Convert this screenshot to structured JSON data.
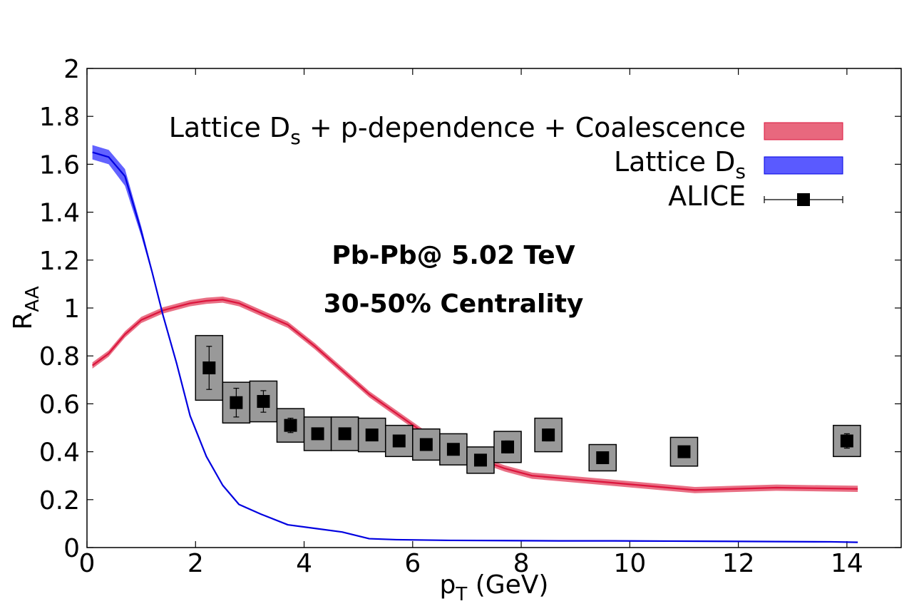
{
  "chart_data": {
    "type": "line",
    "title": "",
    "xlabel": {
      "main": "p",
      "sub": "T",
      "rest": " (GeV)"
    },
    "ylabel": {
      "main": "R",
      "sub": "AA"
    },
    "xlim": [
      0,
      15
    ],
    "ylim": [
      0,
      2
    ],
    "x_ticks": [
      0,
      2,
      4,
      6,
      8,
      10,
      12,
      14
    ],
    "y_ticks": [
      0,
      0.2,
      0.4,
      0.6,
      0.8,
      1,
      1.2,
      1.4,
      1.6,
      1.8,
      2
    ],
    "x_tick_labels": [
      "0",
      "2",
      "4",
      "6",
      "8",
      "10",
      "12",
      "14"
    ],
    "y_tick_labels": [
      "0",
      "0.2",
      "0.4",
      "0.6",
      "0.8",
      "1",
      "1.2",
      "1.4",
      "1.6",
      "1.8",
      "2"
    ],
    "grid": false,
    "legend_position": "top-right",
    "annotations": [
      "Pb-Pb@ 5.02 TeV",
      "30-50% Centrality"
    ],
    "series": [
      {
        "name": "Lattice D_s + p-dependence + Coalescence",
        "legend": {
          "pre": "Lattice D",
          "sub": "s",
          "post": " + p-dependence + Coalescence"
        },
        "type": "band",
        "line_color": "#dc143c",
        "band_color": "#e8687e",
        "x": [
          0.1,
          0.4,
          0.7,
          1.0,
          1.4,
          1.9,
          2.2,
          2.5,
          2.8,
          3.2,
          3.7,
          4.2,
          4.7,
          5.2,
          5.7,
          6.2,
          6.7,
          7.2,
          7.7,
          8.2,
          9.2,
          9.7,
          10.2,
          11.2,
          12.7,
          14.2
        ],
        "y": [
          0.76,
          0.81,
          0.89,
          0.95,
          0.99,
          1.02,
          1.03,
          1.035,
          1.02,
          0.98,
          0.93,
          0.84,
          0.74,
          0.64,
          0.56,
          0.48,
          0.41,
          0.37,
          0.33,
          0.3,
          0.28,
          0.27,
          0.26,
          0.24,
          0.25,
          0.245
        ],
        "band": 0.013
      },
      {
        "name": "Lattice D_s",
        "legend": {
          "pre": "Lattice D",
          "sub": "s",
          "post": ""
        },
        "type": "band",
        "line_color": "#0000e0",
        "band_color": "#5a5aff",
        "x": [
          0.1,
          0.4,
          0.7,
          1.0,
          1.2,
          1.4,
          1.65,
          1.9,
          2.2,
          2.5,
          2.8,
          3.2,
          3.7,
          4.2,
          4.7,
          5.2,
          5.7,
          6.7,
          7.7,
          8.7,
          9.7,
          10.7,
          11.7,
          12.7,
          13.7,
          14.2
        ],
        "y": [
          1.65,
          1.63,
          1.55,
          1.32,
          1.15,
          0.97,
          0.77,
          0.55,
          0.38,
          0.26,
          0.18,
          0.14,
          0.095,
          0.08,
          0.065,
          0.037,
          0.033,
          0.03,
          0.029,
          0.028,
          0.028,
          0.027,
          0.026,
          0.025,
          0.024,
          0.022
        ],
        "band_upper": [
          1.68,
          1.66,
          1.58,
          1.34,
          1.16,
          0.975,
          0.775,
          0.552,
          0.382,
          0.262,
          0.182,
          0.142,
          0.097,
          0.082,
          0.067,
          0.039,
          0.035,
          0.032,
          0.031,
          0.03,
          0.03,
          0.029,
          0.028,
          0.027,
          0.026,
          0.024
        ],
        "band_lower": [
          1.62,
          1.6,
          1.51,
          1.3,
          1.14,
          0.965,
          0.765,
          0.548,
          0.378,
          0.258,
          0.178,
          0.138,
          0.093,
          0.078,
          0.063,
          0.035,
          0.031,
          0.028,
          0.027,
          0.026,
          0.026,
          0.025,
          0.024,
          0.023,
          0.022,
          0.02
        ]
      },
      {
        "name": "ALICE",
        "legend": {
          "pre": "ALICE",
          "sub": "",
          "post": ""
        },
        "type": "points",
        "color": "#000000",
        "box_color": "#999999",
        "x": [
          2.25,
          2.75,
          3.25,
          3.75,
          4.25,
          4.75,
          5.25,
          5.75,
          6.25,
          6.75,
          7.25,
          7.75,
          8.5,
          9.5,
          11.0,
          14.0
        ],
        "y": [
          0.75,
          0.605,
          0.61,
          0.51,
          0.475,
          0.475,
          0.47,
          0.445,
          0.43,
          0.41,
          0.365,
          0.42,
          0.47,
          0.375,
          0.4,
          0.445
        ],
        "stat": [
          0.09,
          0.06,
          0.045,
          0.03,
          0.02,
          0.02,
          0.02,
          0.02,
          0.02,
          0.015,
          0.015,
          0.025,
          0.025,
          0.02,
          0.02,
          0.03
        ],
        "sys": [
          0.135,
          0.085,
          0.085,
          0.07,
          0.07,
          0.07,
          0.07,
          0.065,
          0.065,
          0.065,
          0.055,
          0.065,
          0.07,
          0.055,
          0.06,
          0.065
        ],
        "box_half_width": 0.25
      }
    ]
  }
}
